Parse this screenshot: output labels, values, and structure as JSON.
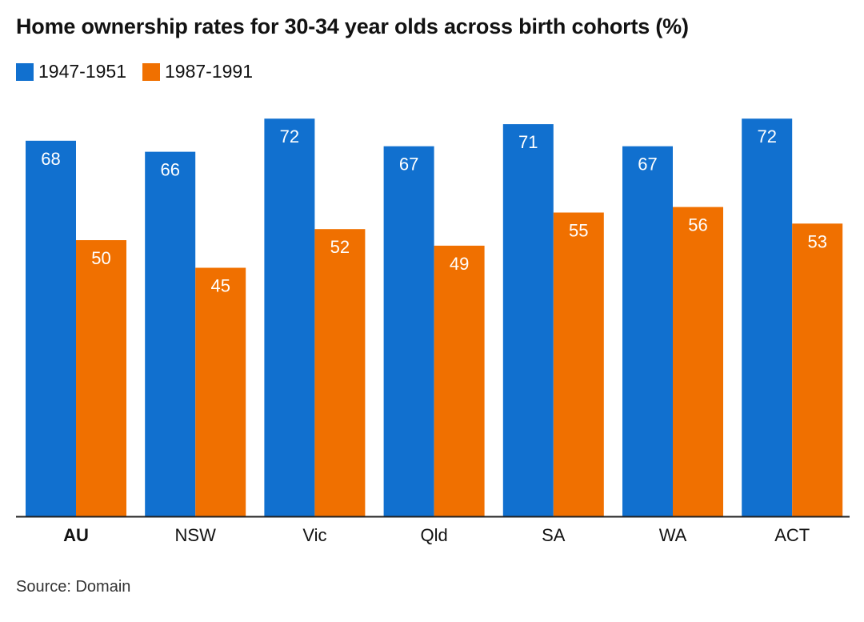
{
  "title": "Home ownership rates for 30-34 year olds across birth cohorts (%)",
  "source": "Source: Domain",
  "colors": {
    "series1": "#1170cf",
    "series2": "#f07000",
    "axis": "#222222"
  },
  "legend": [
    {
      "label": "1947-1951"
    },
    {
      "label": "1987-1991"
    }
  ],
  "chart_data": {
    "type": "bar",
    "title": "Home ownership rates for 30-34 year olds across birth cohorts (%)",
    "xlabel": "",
    "ylabel": "",
    "ylim": [
      0,
      75
    ],
    "grid": false,
    "legend_position": "top-left",
    "categories": [
      "AU",
      "NSW",
      "Vic",
      "Qld",
      "SA",
      "WA",
      "ACT"
    ],
    "bold_categories": [
      "AU"
    ],
    "series": [
      {
        "name": "1947-1951",
        "color": "#1170cf",
        "values": [
          68,
          66,
          72,
          67,
          71,
          67,
          72
        ]
      },
      {
        "name": "1987-1991",
        "color": "#f07000",
        "values": [
          50,
          45,
          52,
          49,
          55,
          56,
          53
        ]
      }
    ]
  }
}
